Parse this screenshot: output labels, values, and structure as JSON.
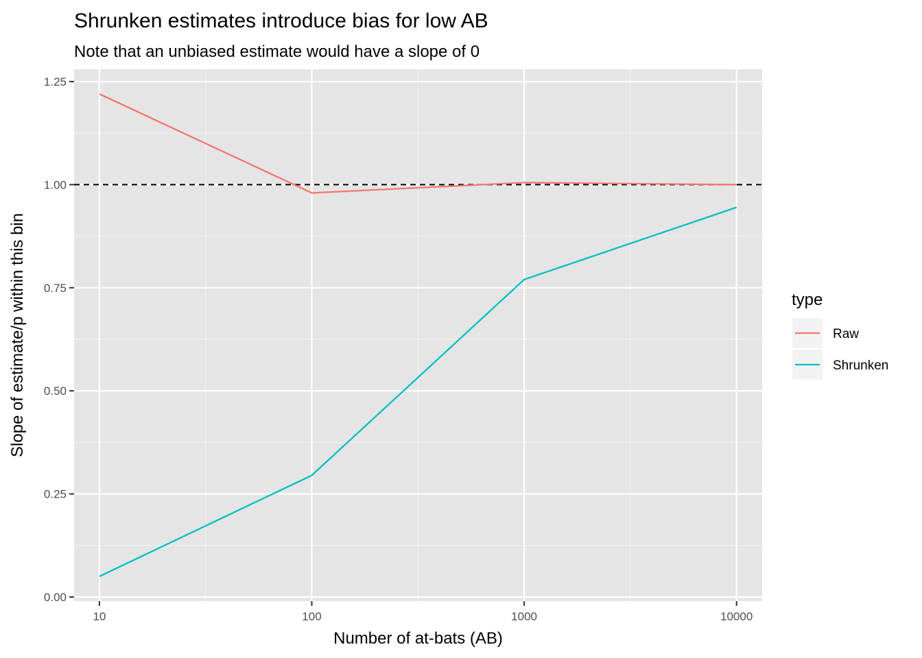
{
  "chart_data": {
    "type": "line",
    "title": "Shrunken estimates introduce bias for low AB",
    "subtitle": "Note that an unbiased estimate would have a slope of 0",
    "xlabel": "Number of at-bats (AB)",
    "ylabel": "Slope of estimate/p within this bin",
    "x_scale": "log10",
    "x": [
      10,
      100,
      1000,
      10000
    ],
    "x_ticks": [
      "10",
      "100",
      "1000",
      "10000"
    ],
    "y_ticks": [
      "0.00",
      "0.25",
      "0.50",
      "0.75",
      "1.00",
      "1.25"
    ],
    "xlim": [
      7.6,
      13200
    ],
    "ylim": [
      -0.01,
      1.28
    ],
    "reference_line": {
      "y": 1.0,
      "style": "dashed",
      "color": "#000000"
    },
    "grid": true,
    "legend": {
      "title": "type",
      "position": "right"
    },
    "series": [
      {
        "name": "Raw",
        "color": "#F8766D",
        "values": [
          1.22,
          0.98,
          1.005,
          1.0
        ]
      },
      {
        "name": "Shrunken",
        "color": "#00BFC4",
        "values": [
          0.05,
          0.295,
          0.77,
          0.945
        ]
      }
    ]
  }
}
